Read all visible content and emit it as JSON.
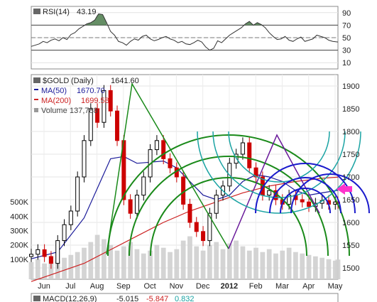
{
  "chart_data": [
    {
      "type": "line",
      "panel": "rsi",
      "legend": {
        "indicator": "RSI(14)",
        "value": "43.19"
      },
      "y_ticks": [
        "90",
        "70",
        "50",
        "30",
        "10"
      ],
      "ylim": [
        0,
        100
      ],
      "reference_lines": [
        70,
        50,
        30
      ],
      "grid": true,
      "series": [
        {
          "name": "RSI(14)",
          "x": [
            0,
            3,
            6,
            9,
            12,
            15,
            18,
            21,
            24,
            27,
            30,
            33,
            36,
            39,
            42,
            45,
            48,
            50,
            51,
            54,
            57,
            60,
            63,
            66,
            69,
            72,
            75,
            78,
            81,
            84,
            87,
            90,
            93,
            96,
            99,
            102,
            105,
            108,
            111,
            114,
            117,
            120,
            123,
            126,
            129,
            132,
            135,
            138,
            141,
            144,
            147,
            150,
            153,
            156,
            159,
            162,
            165,
            168,
            171,
            174,
            177,
            180,
            183,
            186,
            189,
            192,
            195,
            198,
            201,
            204,
            207,
            210,
            213,
            216,
            219,
            222,
            225,
            228,
            232
          ],
          "values": [
            36,
            38,
            40,
            44,
            42,
            46,
            48,
            45,
            50,
            47,
            55,
            58,
            64,
            68,
            72,
            74,
            78,
            85,
            88,
            87,
            74,
            60,
            54,
            44,
            42,
            38,
            44,
            48,
            46,
            52,
            54,
            48,
            45,
            47,
            50,
            52,
            48,
            46,
            42,
            44,
            40,
            39,
            42,
            46,
            43,
            35,
            30,
            33,
            45,
            42,
            48,
            54,
            58,
            62,
            66,
            72,
            76,
            70,
            74,
            71,
            66,
            58,
            52,
            47,
            48,
            52,
            46,
            44,
            48,
            51,
            44,
            46,
            48,
            54,
            52,
            50,
            46,
            44,
            43
          ]
        }
      ]
    },
    {
      "type": "candlestick",
      "panel": "price",
      "legend": {
        "symbol": "$GOLD",
        "period": "(Daily)",
        "last": "1641.60",
        "ma50_label": "MA(50)",
        "ma50_value": "1670.70",
        "ma200_label": "MA(200)",
        "ma200_value": "1699.58",
        "volume_label": "Volume",
        "volume_value": "137,788"
      },
      "categories": [
        "Jun",
        "Jul",
        "Aug",
        "Sep",
        "Oct",
        "Nov",
        "Dec",
        "2012",
        "Feb",
        "Mar",
        "Apr",
        "May"
      ],
      "price_ticks": [
        "1900",
        "1850",
        "1800",
        "1750",
        "1700",
        "1650",
        "1600",
        "1550",
        "1500"
      ],
      "price_ylim": [
        1475,
        1925
      ],
      "volume_ticks": [
        "500K",
        "400K",
        "300K",
        "200K",
        "100K"
      ],
      "volume_ylim": [
        0,
        600000
      ],
      "grid": true,
      "x_range": [
        0,
        232
      ],
      "series": [
        {
          "name": "$GOLD",
          "x": [
            0,
            5,
            10,
            15,
            20,
            25,
            30,
            35,
            40,
            45,
            50,
            55,
            60,
            65,
            70,
            75,
            80,
            85,
            90,
            95,
            100,
            105,
            110,
            115,
            120,
            125,
            130,
            135,
            140,
            145,
            150,
            155,
            160,
            165,
            170,
            175,
            180,
            185,
            190,
            195,
            200,
            205,
            210,
            215,
            220,
            225,
            230,
            232
          ],
          "close": [
            1530,
            1540,
            1525,
            1510,
            1560,
            1595,
            1625,
            1700,
            1780,
            1850,
            1820,
            1890,
            1845,
            1780,
            1650,
            1620,
            1660,
            1700,
            1760,
            1780,
            1740,
            1720,
            1700,
            1640,
            1600,
            1580,
            1560,
            1620,
            1660,
            1680,
            1730,
            1750,
            1775,
            1720,
            1700,
            1660,
            1670,
            1650,
            1640,
            1660,
            1650,
            1645,
            1635,
            1642,
            1648,
            1640,
            1645,
            1641.6
          ]
        },
        {
          "name": "MA(50)",
          "x": [
            0,
            20,
            40,
            60,
            70,
            80,
            100,
            110,
            120,
            130,
            140,
            150,
            160,
            170,
            180,
            190,
            200,
            210,
            220,
            232
          ],
          "values": [
            1520,
            1535,
            1610,
            1740,
            1745,
            1730,
            1735,
            1720,
            1690,
            1660,
            1650,
            1660,
            1690,
            1705,
            1700,
            1690,
            1670,
            1660,
            1665,
            1670.7
          ]
        },
        {
          "name": "MA(200)",
          "x": [
            0,
            20,
            40,
            60,
            80,
            100,
            120,
            140,
            160,
            180,
            200,
            220,
            232
          ],
          "values": [
            1470,
            1490,
            1510,
            1540,
            1570,
            1600,
            1625,
            1645,
            1665,
            1680,
            1690,
            1697,
            1699.58
          ]
        }
      ],
      "volume": [
        120000,
        140000,
        110000,
        160000,
        130000,
        150000,
        170000,
        190000,
        220000,
        260000,
        310000,
        280000,
        240000,
        200000,
        230000,
        260000,
        210000,
        180000,
        200000,
        240000,
        220000,
        190000,
        210000,
        270000,
        300000,
        230000,
        200000,
        240000,
        260000,
        210000,
        250000,
        270000,
        230000,
        200000,
        220000,
        190000,
        210000,
        180000,
        200000,
        220000,
        190000,
        180000,
        170000,
        160000,
        150000,
        140000,
        130000,
        137788
      ]
    },
    {
      "type": "line",
      "panel": "macd",
      "legend": {
        "indicator": "MACD(12,26,9)",
        "macd": "-5.015",
        "signal": "-5.847",
        "hist": "0.832"
      }
    }
  ],
  "colors": {
    "rsi_line": "#333333",
    "ma50": "#1a1a99",
    "ma200": "#cc2222",
    "volume_bar": "#cfcfcf",
    "up_candle": "#000000",
    "down_candle": "#cc0000",
    "green_annotation": "#1a8a1a",
    "teal_annotation": "#1aa3a3",
    "blue_annotation": "#1a1acc",
    "purple_annotation": "#6a1a9a",
    "magenta_arrow": "#ff33cc"
  }
}
